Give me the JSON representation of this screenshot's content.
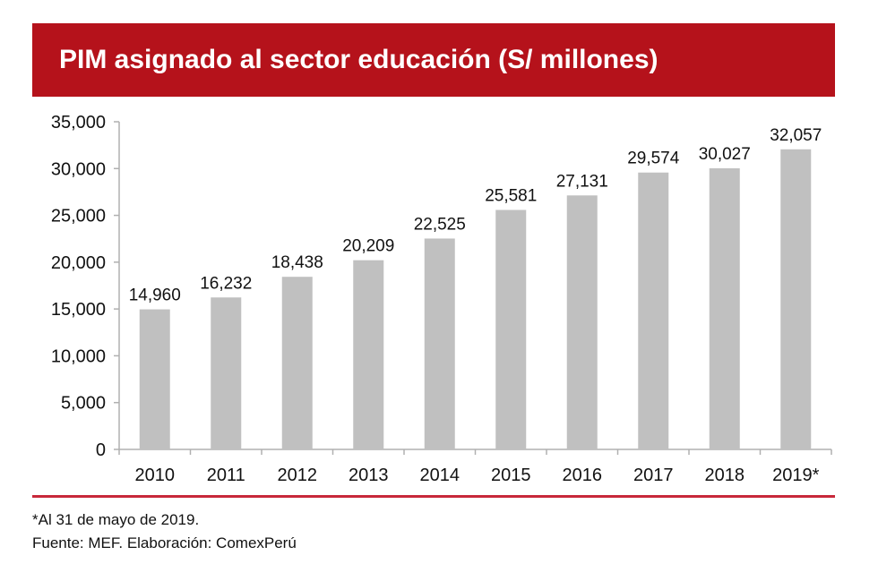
{
  "title": "PIM asignado al sector educación (S/ millones)",
  "colors": {
    "banner": "#b5121b",
    "bar": "#c0c0c0",
    "rule": "#c8283a"
  },
  "chart_data": {
    "type": "bar",
    "title": "PIM asignado al sector educación (S/ millones)",
    "categories": [
      "2010",
      "2011",
      "2012",
      "2013",
      "2014",
      "2015",
      "2016",
      "2017",
      "2018",
      "2019*"
    ],
    "values": [
      14960,
      16232,
      18438,
      20209,
      22525,
      25581,
      27131,
      29574,
      30027,
      32057
    ],
    "value_labels": [
      "14,960",
      "16,232",
      "18,438",
      "20,209",
      "22,525",
      "25,581",
      "27,131",
      "29,574",
      "30,027",
      "32,057"
    ],
    "ylim": [
      0,
      35000
    ],
    "yticks": [
      0,
      5000,
      10000,
      15000,
      20000,
      25000,
      30000,
      35000
    ],
    "ytick_labels": [
      "0",
      "5,000",
      "10,000",
      "15,000",
      "20,000",
      "25,000",
      "30,000",
      "35,000"
    ],
    "xlabel": "",
    "ylabel": "",
    "grid": false,
    "legend": false
  },
  "footnotes": {
    "note": "*Al 31 de mayo de 2019.",
    "source": "Fuente: MEF. Elaboración: ComexPerú"
  }
}
